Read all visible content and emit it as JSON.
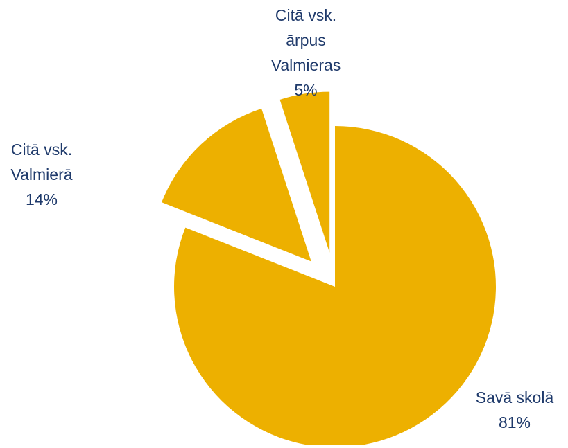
{
  "chart_data": {
    "type": "pie",
    "title": "",
    "exploded": true,
    "start_angle_deg": 0,
    "direction": "clockwise",
    "colors": {
      "slice": "#EDB000",
      "label": "#1F3A6B",
      "background": "#FFFFFF"
    },
    "slices": [
      {
        "name": "Savā skolā",
        "value": 81,
        "value_label": "81%",
        "label_lines": [
          "Savā skolā",
          "81%"
        ]
      },
      {
        "name": "Citā vsk. Valmierā",
        "value": 14,
        "value_label": "14%",
        "label_lines": [
          "Citā vsk.",
          "Valmierā",
          "14%"
        ]
      },
      {
        "name": "Citā vsk. ārpus Valmieras",
        "value": 5,
        "value_label": "5%",
        "label_lines": [
          "Citā vsk.",
          "ārpus",
          "Valmieras",
          "5%"
        ]
      }
    ]
  }
}
